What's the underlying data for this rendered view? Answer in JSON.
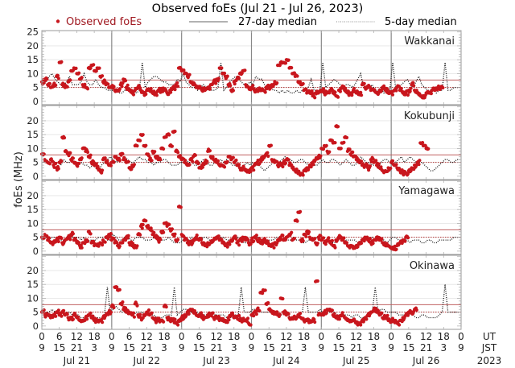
{
  "chart_data": {
    "type": "scatter",
    "title": "Observed foEs (Jul 21 - Jul 26, 2023)",
    "ylabel": "foEs (MHz)",
    "legend": {
      "placement": "top",
      "entries": [
        {
          "label": "Observed foEs",
          "style": "red dots"
        },
        {
          "label": "27-day median",
          "style": "solid line"
        },
        {
          "label": "5-day median",
          "style": "dotted line"
        }
      ]
    },
    "ylim": [
      0,
      25
    ],
    "yticks_first_panel": [
      "0",
      "5",
      "10",
      "15",
      "20",
      "25"
    ],
    "yticks_other_panels": [
      "0",
      "5",
      "10",
      "15",
      "20"
    ],
    "x_hours_range": [
      0,
      144
    ],
    "x_ticks_ut": [
      "0",
      "6",
      "12",
      "18",
      "0",
      "6",
      "12",
      "18",
      "0",
      "6",
      "12",
      "18",
      "0",
      "6",
      "12",
      "18",
      "0",
      "6",
      "12",
      "18",
      "0",
      "6",
      "12",
      "18",
      "0"
    ],
    "x_ticks_jst": [
      "9",
      "15",
      "21",
      "3",
      "9",
      "15",
      "21",
      "3",
      "9",
      "15",
      "21",
      "3",
      "9",
      "15",
      "21",
      "3",
      "9",
      "15",
      "21",
      "3",
      "9",
      "15",
      "21",
      "3",
      "9"
    ],
    "x_row_labels": [
      "UT",
      "JST"
    ],
    "days": [
      "Jul 21",
      "Jul 22",
      "Jul 23",
      "Jul 24",
      "Jul 25",
      "Jul 26"
    ],
    "year": "2023",
    "colors": {
      "observed": "#c8161d",
      "median27_line": "#c06060",
      "median27_dotted": "#b03030",
      "median5": "#111111",
      "day_separator": "#888888",
      "grid": "#e4e4e4"
    },
    "panels": [
      {
        "station": "Wakkanai",
        "median27_upper": 7.7,
        "median27_lower": 5.0,
        "observed_hourly": [
          7,
          8,
          6,
          5,
          6,
          9,
          14,
          6,
          5,
          7,
          11,
          12,
          10,
          8,
          6,
          5,
          12,
          13,
          11,
          12,
          9,
          7,
          6,
          5,
          5,
          4,
          4,
          6,
          8,
          5,
          4,
          3,
          4,
          5,
          4,
          3,
          4,
          4,
          3,
          3,
          4,
          4,
          4,
          3,
          4,
          5,
          6,
          12,
          11,
          10,
          9,
          7,
          6,
          5,
          5,
          4,
          4,
          5,
          6,
          7,
          8,
          12,
          10,
          9,
          6,
          4,
          7,
          8,
          10,
          11,
          6,
          5,
          5,
          4,
          4,
          4,
          4,
          5,
          5,
          6,
          7,
          13,
          14,
          14,
          15,
          12,
          10,
          9,
          7,
          6,
          4,
          3,
          3,
          2,
          3,
          3,
          4,
          3,
          3,
          4,
          3,
          2,
          4,
          5,
          4,
          3,
          3,
          4,
          3,
          3,
          6,
          5,
          5,
          4,
          4,
          3,
          4,
          5,
          4,
          3,
          3,
          4,
          5,
          4,
          3,
          3,
          4,
          6,
          4,
          3,
          2,
          2,
          3,
          3,
          4,
          4,
          5,
          5
        ],
        "median5_hourly": [
          6,
          7,
          9,
          10,
          8,
          7,
          6,
          6,
          7,
          9,
          6,
          6,
          6,
          7,
          10,
          7,
          6,
          6,
          8,
          6,
          5,
          5,
          4,
          4,
          4,
          4,
          3,
          3,
          4,
          5,
          4,
          4,
          3,
          4,
          14,
          5,
          7,
          8,
          9,
          9,
          8,
          7,
          7,
          6,
          6,
          6,
          8,
          7,
          10,
          7,
          6,
          5,
          5,
          4,
          5,
          6,
          5,
          4,
          4,
          4,
          5,
          14,
          4,
          5,
          7,
          8,
          9,
          8,
          7,
          6,
          6,
          7,
          6,
          9,
          8,
          8,
          6,
          5,
          5,
          4,
          4,
          3,
          4,
          3,
          4,
          3,
          3,
          4,
          3,
          4,
          4,
          5,
          8,
          4,
          4,
          4,
          14,
          5,
          6,
          7,
          8,
          7,
          6,
          5,
          6,
          6,
          5,
          6,
          8,
          10,
          5,
          5,
          5,
          6,
          4,
          4,
          5,
          3,
          4,
          4,
          14,
          5,
          5,
          6,
          7,
          8,
          6,
          5,
          7,
          9,
          6,
          5,
          4,
          4,
          5,
          3,
          4,
          4,
          14,
          4,
          4,
          5,
          5,
          5
        ]
      },
      {
        "station": "Kokubunji",
        "median27_upper": 7.7,
        "median27_lower": 5.0,
        "observed_hourly": [
          8,
          6,
          5,
          6,
          4,
          3,
          5,
          14,
          9,
          8,
          6,
          5,
          4,
          6,
          10,
          9,
          7,
          5,
          4,
          3,
          2,
          6,
          5,
          4,
          5,
          7,
          6,
          8,
          6,
          5,
          3,
          4,
          11,
          13,
          15,
          11,
          8,
          6,
          9,
          7,
          6,
          10,
          14,
          15,
          11,
          16,
          9,
          7,
          6,
          5,
          4,
          6,
          7,
          5,
          3,
          4,
          5,
          9,
          7,
          6,
          5,
          4,
          4,
          5,
          7,
          6,
          5,
          4,
          3,
          3,
          2,
          2,
          3,
          4,
          5,
          6,
          7,
          8,
          11,
          6,
          5,
          4,
          4,
          5,
          6,
          4,
          3,
          2,
          1,
          1,
          2,
          3,
          4,
          5,
          6,
          7,
          10,
          11,
          9,
          13,
          12,
          18,
          10,
          12,
          14,
          9,
          8,
          7,
          6,
          5,
          4,
          4,
          3,
          6,
          5,
          4,
          3,
          2,
          2,
          3,
          5,
          4,
          3,
          2,
          1,
          1,
          2,
          3,
          4,
          5,
          12,
          11,
          10
        ],
        "median5_hourly": [
          5,
          6,
          5,
          6,
          5,
          5,
          4,
          6,
          5,
          5,
          6,
          5,
          4,
          5,
          4,
          4,
          3,
          4,
          3,
          2,
          4,
          5,
          6,
          7,
          6,
          5,
          6,
          6,
          7,
          6,
          5,
          5,
          6,
          7,
          6,
          6,
          5,
          5,
          4,
          5,
          5,
          6,
          6,
          5,
          4,
          4,
          4,
          5,
          5,
          6,
          5,
          5,
          4,
          4,
          5,
          6,
          6,
          4,
          4,
          5,
          5,
          6,
          5,
          6,
          5,
          4,
          4,
          4,
          3,
          4,
          5,
          4,
          5,
          4,
          4,
          3,
          2,
          3,
          4,
          5,
          6,
          5,
          6,
          7,
          6,
          6,
          5,
          5,
          6,
          6,
          5,
          4,
          4,
          4,
          4,
          5,
          6,
          5,
          5,
          6,
          6,
          5,
          4,
          5,
          6,
          5,
          4,
          4,
          5,
          7,
          6,
          5,
          5,
          4,
          4,
          3,
          5,
          6,
          6,
          5,
          4,
          5,
          6,
          7,
          5,
          6,
          7,
          6,
          5,
          5,
          5,
          4,
          3,
          2,
          2,
          3,
          4,
          5,
          6,
          6,
          5,
          5,
          6,
          6
        ]
      },
      {
        "station": "Yamagawa",
        "median27_upper": 7.7,
        "median27_lower": 5.0,
        "observed_hourly": [
          5,
          6,
          4,
          3,
          3,
          4,
          5,
          3,
          4,
          5,
          6,
          4,
          3,
          2,
          3,
          4,
          7,
          3,
          2,
          2,
          3,
          4,
          5,
          6,
          4,
          3,
          2,
          3,
          4,
          5,
          3,
          2,
          2,
          6,
          9,
          11,
          9,
          8,
          6,
          5,
          4,
          7,
          10,
          9,
          8,
          6,
          4,
          16,
          6,
          4,
          3,
          3,
          4,
          5,
          4,
          3,
          2,
          3,
          3,
          4,
          5,
          4,
          3,
          2,
          3,
          4,
          5,
          3,
          4,
          5,
          4,
          3,
          4,
          5,
          4,
          3,
          4,
          3,
          2,
          2,
          3,
          4,
          5,
          4,
          5,
          6,
          4,
          11,
          14,
          4,
          6,
          7,
          5,
          4,
          3,
          5,
          4,
          3,
          4,
          3,
          2,
          4,
          5,
          4,
          3,
          2,
          2,
          1,
          2,
          3,
          4,
          5,
          4,
          3,
          4,
          5,
          4,
          3,
          2,
          2,
          1,
          1,
          2,
          3,
          4,
          5
        ],
        "median5_hourly": [
          5,
          5,
          4,
          5,
          5,
          4,
          4,
          4,
          4,
          4,
          5,
          5,
          5,
          4,
          5,
          3,
          4,
          4,
          4,
          5,
          5,
          5,
          4,
          4,
          6,
          5,
          4,
          4,
          5,
          5,
          4,
          4,
          5,
          5,
          5,
          4,
          4,
          4,
          5,
          5,
          4,
          4,
          4,
          5,
          4,
          3,
          3,
          3,
          4,
          4,
          4,
          5,
          4,
          4,
          4,
          5,
          5,
          4,
          4,
          4,
          5,
          5,
          5,
          4,
          4,
          4,
          5,
          5,
          4,
          3,
          3,
          4,
          4,
          5,
          5,
          4,
          4,
          4,
          4,
          4,
          5,
          5,
          4,
          4,
          4,
          4,
          5,
          4,
          4,
          3,
          3,
          4,
          4,
          4,
          5,
          5,
          5,
          4,
          4,
          3,
          3,
          4,
          5,
          5,
          4,
          4,
          4,
          4,
          3,
          4,
          4,
          4,
          5,
          5,
          4,
          4,
          4,
          4,
          3,
          4,
          5,
          5,
          4,
          4,
          4,
          4,
          3,
          4,
          4,
          4,
          3,
          3,
          4,
          4,
          3,
          3,
          4,
          4,
          4,
          4,
          4,
          5,
          5,
          5
        ]
      },
      {
        "station": "Okinawa",
        "median27_upper": 7.7,
        "median27_lower": 5.0,
        "observed_hourly": [
          5,
          4,
          4,
          3,
          4,
          5,
          4,
          5,
          4,
          3,
          3,
          4,
          3,
          2,
          2,
          3,
          4,
          3,
          2,
          2,
          2,
          3,
          4,
          5,
          7,
          14,
          13,
          8,
          6,
          5,
          5,
          4,
          8,
          4,
          3,
          4,
          5,
          4,
          3,
          2,
          2,
          2,
          7,
          3,
          2,
          2,
          1,
          2,
          3,
          4,
          5,
          6,
          5,
          4,
          4,
          3,
          3,
          4,
          4,
          3,
          3,
          2,
          2,
          2,
          3,
          4,
          3,
          3,
          2,
          2,
          2,
          1,
          4,
          5,
          6,
          12,
          13,
          8,
          6,
          5,
          5,
          4,
          10,
          5,
          4,
          3,
          3,
          3,
          4,
          3,
          2,
          2,
          2,
          2,
          16,
          4,
          4,
          5,
          6,
          6,
          4,
          3,
          3,
          4,
          3,
          2,
          2,
          2,
          1,
          1,
          2,
          3,
          4,
          5,
          6,
          5,
          4,
          3,
          3,
          2,
          2,
          2,
          1,
          2,
          3,
          4,
          5,
          5,
          6
        ],
        "median5_hourly": [
          5,
          5,
          5,
          6,
          5,
          5,
          5,
          4,
          5,
          5,
          4,
          4,
          4,
          3,
          3,
          4,
          4,
          4,
          3,
          3,
          3,
          4,
          14,
          5,
          6,
          7,
          6,
          5,
          5,
          5,
          4,
          4,
          5,
          5,
          5,
          4,
          4,
          4,
          4,
          3,
          3,
          3,
          4,
          4,
          4,
          14,
          4,
          5,
          6,
          6,
          5,
          5,
          5,
          5,
          4,
          4,
          4,
          5,
          5,
          4,
          4,
          4,
          4,
          3,
          3,
          3,
          4,
          4,
          14,
          5,
          5,
          5,
          6,
          6,
          6,
          5,
          5,
          5,
          5,
          5,
          4,
          4,
          4,
          5,
          4,
          3,
          3,
          3,
          4,
          5,
          14,
          5,
          5,
          5,
          5,
          6,
          5,
          5,
          5,
          5,
          5,
          4,
          4,
          4,
          4,
          4,
          3,
          4,
          4,
          3,
          3,
          3,
          4,
          5,
          14,
          5,
          6,
          6,
          5,
          5,
          5,
          5,
          4,
          4,
          4,
          4,
          5,
          4,
          3,
          3,
          4,
          4,
          3,
          3,
          3,
          3,
          4,
          5,
          15,
          5,
          5,
          5,
          5,
          5
        ]
      }
    ]
  }
}
